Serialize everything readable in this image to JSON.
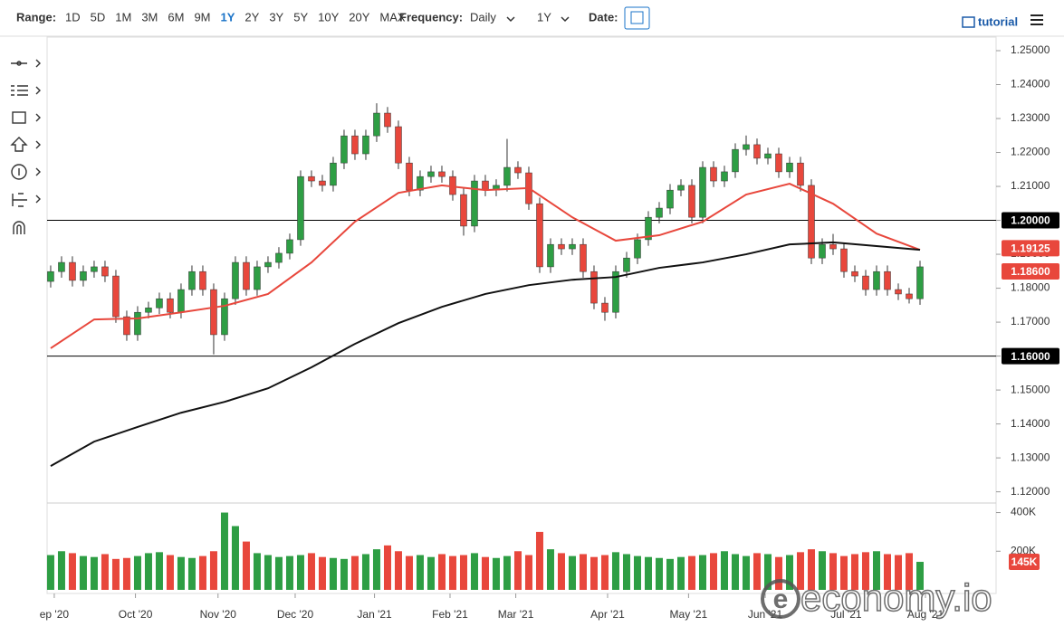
{
  "toolbar": {
    "range_label": "Range:",
    "ranges": [
      "1D",
      "5D",
      "1M",
      "3M",
      "6M",
      "9M",
      "1Y",
      "2Y",
      "3Y",
      "5Y",
      "10Y",
      "20Y",
      "MAX"
    ],
    "active_range": "1Y",
    "frequency_label": "Frequency:",
    "frequency": "Daily",
    "period": "1Y",
    "date_label": "Date:",
    "tutorial": "tutorial"
  },
  "watermark": "economy.io",
  "chart_data": {
    "type": "candlestick",
    "xlim": [
      -0.33,
      87
    ],
    "xticks": [
      {
        "value": 0.33,
        "label": "ep '20"
      },
      {
        "value": 7.8,
        "label": "Oct '20"
      },
      {
        "value": 15.4,
        "label": "Nov '20"
      },
      {
        "value": 22.5,
        "label": "Dec '20"
      },
      {
        "value": 29.8,
        "label": "Jan '21"
      },
      {
        "value": 36.75,
        "label": "Feb '21"
      },
      {
        "value": 42.8,
        "label": "Mar '21"
      },
      {
        "value": 51.25,
        "label": "Apr '21"
      },
      {
        "value": 58.7,
        "label": "May '21"
      },
      {
        "value": 65.75,
        "label": "Jun '21"
      },
      {
        "value": 73.2,
        "label": "Jul '21"
      },
      {
        "value": 80.5,
        "label": "Aug '21"
      }
    ],
    "ylim": [
      1.1167,
      1.254
    ],
    "yticks": [
      {
        "value": 1.12,
        "label": "1.12000"
      },
      {
        "value": 1.13,
        "label": "1.13000"
      },
      {
        "value": 1.14,
        "label": "1.14000"
      },
      {
        "value": 1.15,
        "label": "1.15000"
      },
      {
        "value": 1.16,
        "label": "1.16000"
      },
      {
        "value": 1.17,
        "label": "1.17000"
      },
      {
        "value": 1.18,
        "label": "1.18000"
      },
      {
        "value": 1.19,
        "label": "1.19000"
      },
      {
        "value": 1.2,
        "label": "1.20000"
      },
      {
        "value": 1.21,
        "label": "1.21000"
      },
      {
        "value": 1.22,
        "label": "1.22000"
      },
      {
        "value": 1.23,
        "label": "1.23000"
      },
      {
        "value": 1.24,
        "label": "1.24000"
      },
      {
        "value": 1.25,
        "label": "1.25000"
      }
    ],
    "up_color": "#2e9e44",
    "down_color": "#e8473c",
    "open": [
      1.182,
      1.1849,
      1.1876,
      1.1823,
      1.1849,
      1.1863,
      1.1836,
      1.1716,
      1.1663,
      1.1729,
      1.1742,
      1.1769,
      1.1729,
      1.1796,
      1.1849,
      1.1796,
      1.1663,
      1.1769,
      1.1876,
      1.1796,
      1.1863,
      1.1876,
      1.1903,
      1.1943,
      1.2129,
      1.2116,
      1.2103,
      1.2169,
      1.2249,
      1.2196,
      1.2249,
      1.2316,
      1.2276,
      1.2169,
      1.2089,
      1.2129,
      1.2143,
      1.2129,
      1.2076,
      1.1983,
      1.2116,
      1.2089,
      1.2103,
      1.2156,
      1.214,
      1.2049,
      1.1863,
      1.1929,
      1.1916,
      1.1929,
      1.1849,
      1.1756,
      1.1729,
      1.1849,
      1.1889,
      1.1943,
      1.2009,
      1.2036,
      1.2089,
      1.2103,
      1.2009,
      1.2156,
      1.2116,
      1.2143,
      1.2209,
      1.2223,
      1.2183,
      1.2196,
      1.2143,
      1.2169,
      1.2103,
      1.1889,
      1.1929,
      1.1916,
      1.1849,
      1.1836,
      1.1796,
      1.1849,
      1.1796,
      1.1783,
      1.1769
    ],
    "high": [
      1.1867,
      1.1894,
      1.1894,
      1.1867,
      1.1881,
      1.1881,
      1.1854,
      1.1734,
      1.1747,
      1.176,
      1.1787,
      1.1787,
      1.1814,
      1.1867,
      1.1867,
      1.1814,
      1.1787,
      1.1894,
      1.1894,
      1.1881,
      1.1894,
      1.1921,
      1.1961,
      1.2147,
      1.2147,
      1.2134,
      1.2187,
      1.2267,
      1.2267,
      1.2267,
      1.2345,
      1.2334,
      1.2294,
      1.2187,
      1.2147,
      1.2161,
      1.2161,
      1.2147,
      1.2094,
      1.2134,
      1.2134,
      1.2121,
      1.224,
      1.2174,
      1.2158,
      1.2067,
      1.1947,
      1.1947,
      1.1947,
      1.1947,
      1.1867,
      1.1774,
      1.1867,
      1.1907,
      1.1961,
      1.2027,
      1.2054,
      1.2107,
      1.2121,
      1.2121,
      1.2174,
      1.2174,
      1.2161,
      1.2227,
      1.225,
      1.2241,
      1.2214,
      1.2214,
      1.2187,
      1.2187,
      1.2121,
      1.1947,
      1.196,
      1.1934,
      1.1867,
      1.1854,
      1.1867,
      1.1867,
      1.1814,
      1.1801,
      1.1881
    ],
    "low": [
      1.1802,
      1.1831,
      1.1805,
      1.1805,
      1.1831,
      1.1818,
      1.1698,
      1.1645,
      1.1645,
      1.1711,
      1.1724,
      1.1711,
      1.1711,
      1.1778,
      1.1778,
      1.1605,
      1.1645,
      1.1751,
      1.1778,
      1.1778,
      1.1845,
      1.1858,
      1.1885,
      1.1925,
      1.2098,
      1.2085,
      1.2085,
      1.2151,
      1.2178,
      1.2178,
      1.2231,
      1.2258,
      1.2151,
      1.2071,
      1.2071,
      1.2111,
      1.2111,
      1.2058,
      1.1955,
      1.1965,
      1.2071,
      1.2071,
      1.2085,
      1.2122,
      1.2031,
      1.1845,
      1.1845,
      1.1898,
      1.1898,
      1.1831,
      1.1738,
      1.1704,
      1.1711,
      1.1831,
      1.1871,
      1.1925,
      1.1991,
      1.2018,
      1.2071,
      1.1991,
      1.1991,
      1.2098,
      1.2098,
      1.2125,
      1.2191,
      1.2165,
      1.2165,
      1.2125,
      1.2125,
      1.2085,
      1.1871,
      1.1871,
      1.1898,
      1.1831,
      1.1818,
      1.1778,
      1.1778,
      1.1778,
      1.1765,
      1.1755,
      1.1751
    ],
    "close": [
      1.1849,
      1.1876,
      1.1823,
      1.1849,
      1.1863,
      1.1836,
      1.1716,
      1.1663,
      1.1729,
      1.1742,
      1.1769,
      1.1729,
      1.1796,
      1.1849,
      1.1796,
      1.1663,
      1.1769,
      1.1876,
      1.1796,
      1.1863,
      1.1876,
      1.1903,
      1.1943,
      1.2129,
      1.2116,
      1.2103,
      1.2169,
      1.2249,
      1.2196,
      1.2249,
      1.2316,
      1.2276,
      1.2169,
      1.2089,
      1.2129,
      1.2143,
      1.2129,
      1.2076,
      1.1983,
      1.2116,
      1.2089,
      1.2103,
      1.2156,
      1.214,
      1.2049,
      1.1863,
      1.1929,
      1.1916,
      1.1929,
      1.1849,
      1.1756,
      1.1729,
      1.1849,
      1.1889,
      1.1943,
      1.2009,
      1.2036,
      1.2089,
      1.2103,
      1.2009,
      1.2156,
      1.2116,
      1.2143,
      1.2209,
      1.2223,
      1.2183,
      1.2196,
      1.2143,
      1.2169,
      1.2103,
      1.1889,
      1.1929,
      1.1916,
      1.1849,
      1.1836,
      1.1796,
      1.1849,
      1.1796,
      1.1783,
      1.1769,
      1.1863
    ],
    "ma": [
      {
        "color": "#e8473c",
        "x": [
          0,
          4,
          8,
          12,
          16,
          20,
          24,
          28,
          32,
          36,
          40,
          44,
          48,
          52,
          56,
          60,
          64,
          68,
          72,
          76,
          80
        ],
        "values": [
          1.1623,
          1.1708,
          1.1711,
          1.1729,
          1.1748,
          1.1783,
          1.1876,
          1.1996,
          1.2081,
          1.2103,
          1.2089,
          1.2095,
          1.2009,
          1.194,
          1.1956,
          1.1996,
          1.2076,
          1.2108,
          1.2049,
          1.1961,
          1.1913
        ]
      },
      {
        "color": "#111111",
        "x": [
          0,
          4,
          8,
          12,
          16,
          20,
          24,
          28,
          32,
          36,
          40,
          44,
          48,
          52,
          56,
          60,
          64,
          68,
          72,
          76,
          80
        ],
        "values": [
          1.1276,
          1.1348,
          1.1391,
          1.1433,
          1.1465,
          1.1505,
          1.1567,
          1.1636,
          1.1697,
          1.1745,
          1.1783,
          1.1809,
          1.1825,
          1.1833,
          1.186,
          1.1876,
          1.19,
          1.1929,
          1.1935,
          1.1924,
          1.1913
        ]
      }
    ],
    "hlines": [
      {
        "value": 1.2,
        "label": "1.20000"
      },
      {
        "value": 1.16,
        "label": "1.16000"
      }
    ],
    "price_tags": [
      {
        "value": 1.19125,
        "label": "1.19125"
      },
      {
        "value": 1.186,
        "label": "1.18600"
      }
    ],
    "volume": {
      "ylim": [
        0,
        440
      ],
      "yticks": [
        {
          "value": 400,
          "label": "400K"
        },
        {
          "value": 200,
          "label": "200K"
        }
      ],
      "values": [
        180,
        200,
        190,
        175,
        170,
        185,
        160,
        165,
        175,
        190,
        195,
        180,
        170,
        165,
        175,
        200,
        400,
        330,
        250,
        190,
        180,
        170,
        175,
        180,
        190,
        170,
        165,
        160,
        175,
        185,
        210,
        230,
        200,
        175,
        180,
        170,
        185,
        175,
        180,
        190,
        170,
        165,
        175,
        200,
        180,
        300,
        210,
        190,
        175,
        185,
        170,
        180,
        195,
        185,
        175,
        170,
        165,
        160,
        170,
        175,
        180,
        190,
        200,
        185,
        175,
        190,
        185,
        170,
        180,
        195,
        210,
        200,
        190,
        175,
        185,
        195,
        200,
        185,
        180,
        190,
        145
      ],
      "tag": {
        "value": 145,
        "label": "145K"
      }
    }
  }
}
